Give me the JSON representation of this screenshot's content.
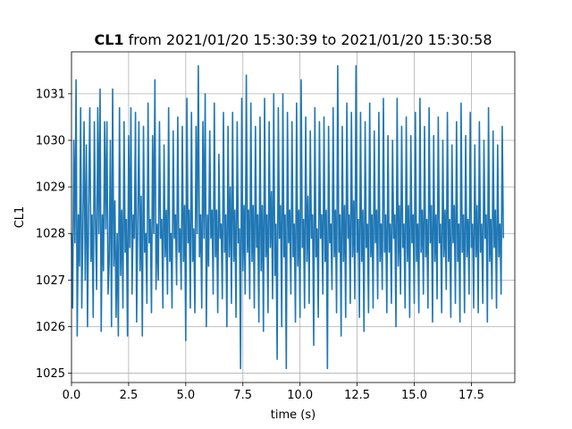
{
  "chart_data": {
    "type": "line",
    "title_bold": "CL1",
    "title_rest": " from 2021/01/20 15:30:39 to 2021/01/20 15:30:58",
    "xlabel": "time (s)",
    "ylabel": "CL1",
    "xlim": [
      0.0,
      19.4
    ],
    "ylim": [
      1024.8,
      1031.9
    ],
    "x_ticks": [
      0.0,
      2.5,
      5.0,
      7.5,
      10.0,
      12.5,
      15.0,
      17.5
    ],
    "x_tick_labels": [
      "0.0",
      "2.5",
      "5.0",
      "7.5",
      "10.0",
      "12.5",
      "15.0",
      "17.5"
    ],
    "y_ticks": [
      1025,
      1026,
      1027,
      1028,
      1029,
      1030,
      1031
    ],
    "y_tick_labels": [
      "1025",
      "1026",
      "1027",
      "1028",
      "1029",
      "1030",
      "1031"
    ],
    "grid": true,
    "line_color": "#1f77b4",
    "series": [
      {
        "x_start": 0.0,
        "x_step": 0.05,
        "values": [
          1028.0,
          1026.4,
          1030.0,
          1027.8,
          1031.3,
          1025.8,
          1028.4,
          1027.3,
          1030.7,
          1026.4,
          1028.2,
          1030.4,
          1027.0,
          1029.9,
          1026.0,
          1028.5,
          1030.7,
          1027.4,
          1028.4,
          1026.2,
          1030.4,
          1028.2,
          1026.8,
          1030.7,
          1028.0,
          1031.1,
          1025.9,
          1028.4,
          1027.2,
          1030.4,
          1028.1,
          1030.4,
          1026.7,
          1027.4,
          1030.0,
          1026.0,
          1031.1,
          1027.3,
          1028.7,
          1026.2,
          1028.0,
          1025.8,
          1030.7,
          1027.1,
          1028.5,
          1026.4,
          1030.4,
          1027.6,
          1028.3,
          1025.8,
          1030.1,
          1027.7,
          1030.7,
          1026.7,
          1028.4,
          1027.9,
          1030.6,
          1026.1,
          1028.2,
          1030.4,
          1027.2,
          1028.8,
          1025.8,
          1030.3,
          1027.6,
          1028.0,
          1026.5,
          1030.8,
          1027.8,
          1028.3,
          1026.3,
          1030.1,
          1028.0,
          1031.3,
          1026.8,
          1028.2,
          1027.0,
          1030.4,
          1027.9,
          1028.3,
          1026.4,
          1029.9,
          1027.5,
          1028.5,
          1026.7,
          1030.7,
          1027.4,
          1028.0,
          1026.4,
          1030.2,
          1027.9,
          1028.4,
          1026.9,
          1030.5,
          1027.6,
          1028.1,
          1026.8,
          1030.3,
          1027.4,
          1028.6,
          1025.7,
          1030.9,
          1027.8,
          1028.5,
          1026.4,
          1030.6,
          1027.4,
          1028.1,
          1026.3,
          1030.3,
          1028.0,
          1031.6,
          1027.5,
          1028.4,
          1026.4,
          1030.4,
          1027.9,
          1031.0,
          1026.0,
          1028.4,
          1027.3,
          1030.2,
          1027.9,
          1028.5,
          1026.7,
          1030.8,
          1027.5,
          1028.5,
          1026.3,
          1029.7,
          1027.9,
          1028.2,
          1026.6,
          1030.6,
          1027.6,
          1028.4,
          1026.0,
          1030.3,
          1027.5,
          1029.0,
          1026.5,
          1030.6,
          1027.4,
          1028.5,
          1026.2,
          1030.4,
          1027.8,
          1028.1,
          1025.1,
          1030.9,
          1027.2,
          1028.6,
          1026.7,
          1031.4,
          1027.6,
          1028.5,
          1026.6,
          1030.8,
          1027.4,
          1028.6,
          1026.4,
          1030.3,
          1027.7,
          1028.4,
          1026.1,
          1030.5,
          1027.2,
          1028.6,
          1025.9,
          1030.9,
          1027.5,
          1028.4,
          1026.3,
          1030.4,
          1027.7,
          1028.9,
          1026.6,
          1031.0,
          1027.1,
          1028.2,
          1025.3,
          1030.7,
          1027.9,
          1028.6,
          1026.0,
          1031.0,
          1027.5,
          1028.4,
          1025.1,
          1030.6,
          1027.8,
          1028.5,
          1026.7,
          1030.4,
          1027.5,
          1028.2,
          1026.1,
          1030.8,
          1027.3,
          1028.5,
          1026.2,
          1031.3,
          1027.7,
          1028.3,
          1026.4,
          1030.5,
          1027.4,
          1028.8,
          1026.5,
          1030.2,
          1027.9,
          1028.4,
          1025.6,
          1030.7,
          1027.5,
          1028.1,
          1026.2,
          1030.4,
          1027.9,
          1028.4,
          1026.7,
          1030.5,
          1027.4,
          1028.5,
          1025.1,
          1030.3,
          1027.8,
          1028.2,
          1026.8,
          1030.7,
          1027.5,
          1028.5,
          1026.3,
          1031.6,
          1027.6,
          1028.4,
          1025.8,
          1030.3,
          1027.4,
          1028.6,
          1026.2,
          1030.8,
          1027.9,
          1028.4,
          1026.5,
          1030.6,
          1027.5,
          1028.7,
          1026.6,
          1031.6,
          1027.6,
          1028.3,
          1026.2,
          1030.6,
          1027.4,
          1028.5,
          1025.9,
          1030.4,
          1027.7,
          1028.2,
          1026.3,
          1030.8,
          1027.5,
          1028.4,
          1026.4,
          1030.2,
          1027.8,
          1028.5,
          1026.6,
          1030.6,
          1027.4,
          1028.2,
          1026.8,
          1030.9,
          1027.6,
          1028.4,
          1026.3,
          1030.1,
          1027.6,
          1028.2,
          1026.5,
          1030.0,
          1027.9,
          1028.4,
          1026.0,
          1030.9,
          1027.3,
          1028.6,
          1026.7,
          1030.3,
          1027.7,
          1028.2,
          1026.4,
          1030.5,
          1027.4,
          1028.6,
          1026.2,
          1030.1,
          1027.8,
          1028.4,
          1026.5,
          1030.6,
          1027.4,
          1028.2,
          1026.3,
          1030.9,
          1027.6,
          1028.5,
          1026.7,
          1030.3,
          1027.5,
          1028.3,
          1026.4,
          1030.7,
          1027.8,
          1028.6,
          1026.1,
          1030.1,
          1027.4,
          1028.4,
          1026.6,
          1030.5,
          1027.8,
          1028.2,
          1026.3,
          1030.0,
          1027.5,
          1028.5,
          1026.8,
          1030.6,
          1027.4,
          1028.3,
          1026.2,
          1029.9,
          1027.8,
          1028.6,
          1026.5,
          1030.4,
          1027.4,
          1028.2,
          1026.1,
          1030.8,
          1027.6,
          1028.4,
          1026.3,
          1030.1,
          1027.5,
          1028.3,
          1026.7,
          1030.6,
          1027.7,
          1028.2,
          1026.4,
          1029.9,
          1027.5,
          1028.6,
          1026.3,
          1030.4,
          1027.6,
          1028.2,
          1026.5,
          1030.0,
          1027.9,
          1028.4,
          1026.1,
          1030.7,
          1027.4,
          1028.3,
          1026.6,
          1030.2,
          1027.7,
          1028.5,
          1026.4,
          1029.9,
          1027.5,
          1028.2,
          1026.7,
          1030.3,
          1027.9
        ]
      }
    ]
  }
}
